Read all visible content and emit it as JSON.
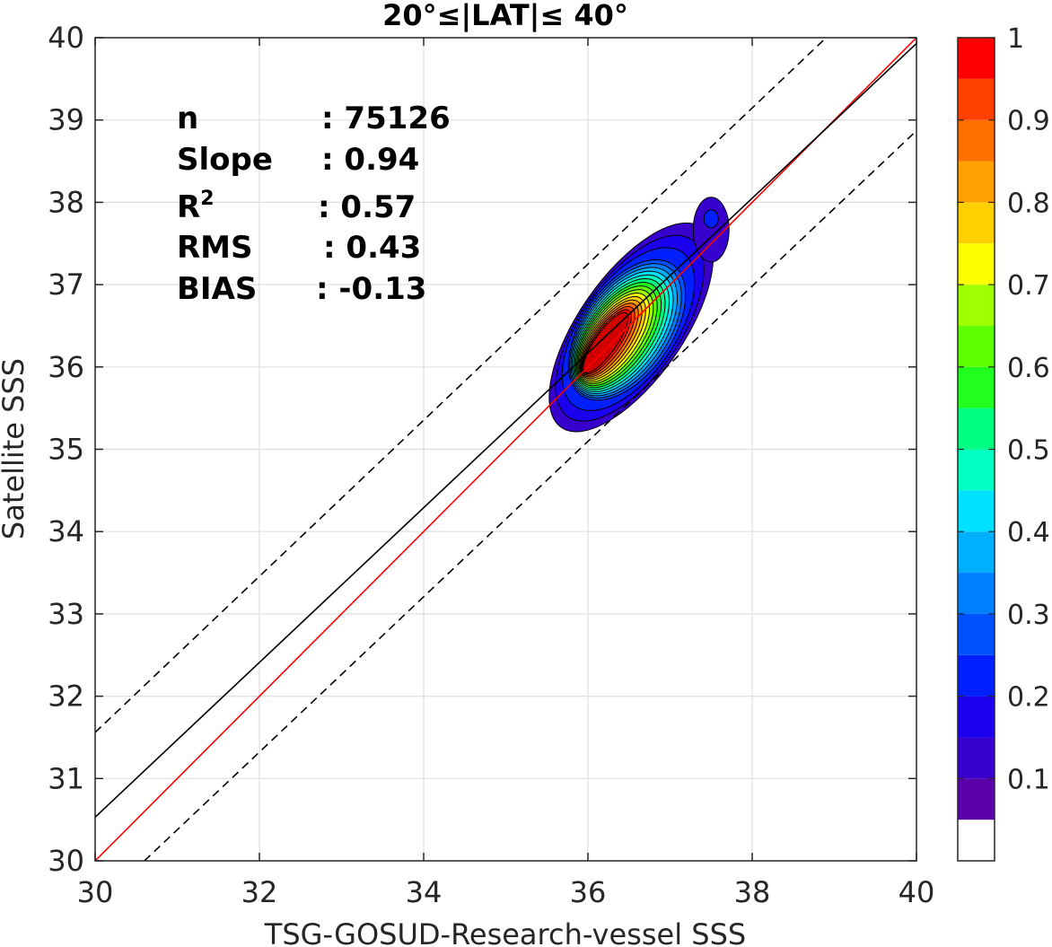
{
  "chart_data": {
    "type": "contour",
    "title": "20°≤|LAT|≤ 40°",
    "xlabel": "TSG-GOSUD-Research-vessel SSS",
    "ylabel": "Satellite SSS",
    "xlim": [
      30,
      40
    ],
    "ylim": [
      30,
      40
    ],
    "x_ticks": [
      "30",
      "32",
      "34",
      "36",
      "38",
      "40"
    ],
    "y_ticks": [
      "30",
      "31",
      "32",
      "33",
      "34",
      "35",
      "36",
      "37",
      "38",
      "39",
      "40"
    ],
    "grid": true,
    "stats": [
      {
        "label": "n",
        "value": ": 75126"
      },
      {
        "label": "Slope",
        "value": ": 0.94"
      },
      {
        "label": "R",
        "sup": "2",
        "value": ": 0.57"
      },
      {
        "label": "RMS",
        "value": ": 0.43"
      },
      {
        "label": "BIAS",
        "value": ": -0.13"
      }
    ],
    "lines": [
      {
        "name": "one-to-one",
        "color": "#ff0000",
        "style": "solid",
        "points": [
          [
            30,
            30
          ],
          [
            40,
            40
          ]
        ]
      },
      {
        "name": "regression",
        "color": "#000000",
        "style": "solid",
        "points": [
          [
            30,
            30.53
          ],
          [
            40,
            39.93
          ]
        ]
      },
      {
        "name": "upper-bound",
        "color": "#000000",
        "style": "dashed",
        "points": [
          [
            30,
            31.56
          ],
          [
            38.9,
            40
          ]
        ]
      },
      {
        "name": "lower-bound",
        "color": "#000000",
        "style": "dashed",
        "points": [
          [
            30.6,
            30
          ],
          [
            40,
            38.87
          ]
        ]
      }
    ],
    "density_peak": {
      "x": 36.33,
      "y": 36.35
    },
    "secondary_peak": {
      "x": 37.5,
      "y": 37.8
    },
    "colorbar": {
      "ticks": [
        "0.1",
        "0.2",
        "0.3",
        "0.4",
        "0.5",
        "0.6",
        "0.7",
        "0.8",
        "0.9",
        "1"
      ],
      "tick_values": [
        0.1,
        0.2,
        0.3,
        0.4,
        0.5,
        0.6,
        0.7,
        0.8,
        0.9,
        1.0
      ],
      "levels": [
        0.0,
        0.05,
        0.1,
        0.15,
        0.2,
        0.25,
        0.3,
        0.35,
        0.4,
        0.45,
        0.5,
        0.55,
        0.6,
        0.65,
        0.7,
        0.75,
        0.8,
        0.85,
        0.9,
        0.95,
        1.0
      ],
      "colors": [
        "#ffffff",
        "#5b00a8",
        "#3800cc",
        "#1a00ee",
        "#0020ff",
        "#0050ff",
        "#0080ff",
        "#00b0ff",
        "#00e0ff",
        "#00ffc0",
        "#00ff80",
        "#20ff20",
        "#60ff00",
        "#a0ff00",
        "#ffff00",
        "#ffd000",
        "#ffa000",
        "#ff7000",
        "#ff4000",
        "#ff0000",
        "#d00000",
        "#900000"
      ]
    }
  }
}
